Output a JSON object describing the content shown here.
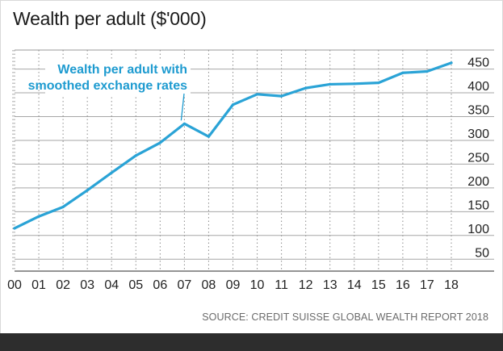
{
  "title": "Wealth per adult ($'000)",
  "source": "SOURCE: CREDIT SUISSE GLOBAL WEALTH REPORT 2018",
  "colors": {
    "line": "#2aa3d6",
    "annotation": "#1e9bd0",
    "grid": "#8c8c8c",
    "text": "#222222",
    "source": "#6b6b6b",
    "footer": "#2d2d2d"
  },
  "chart_data": {
    "type": "line",
    "x": [
      "00",
      "01",
      "02",
      "03",
      "04",
      "05",
      "06",
      "07",
      "08",
      "09",
      "10",
      "11",
      "12",
      "13",
      "14",
      "15",
      "16",
      "17",
      "18"
    ],
    "series": [
      {
        "name": "Wealth per adult with smoothed exchange rates",
        "values": [
          115,
          140,
          160,
          195,
          232,
          268,
          295,
          335,
          308,
          375,
          397,
          393,
          410,
          418,
          419,
          421,
          442,
          445,
          463
        ]
      }
    ],
    "ylim": [
      25,
      490
    ],
    "yticks": [
      50,
      100,
      150,
      200,
      250,
      300,
      350,
      400,
      450
    ],
    "y_axis_position": "right",
    "grid": true,
    "annotation": {
      "lines": [
        "Wealth per adult with",
        "smoothed exchange rates"
      ],
      "points_to": "07"
    }
  }
}
